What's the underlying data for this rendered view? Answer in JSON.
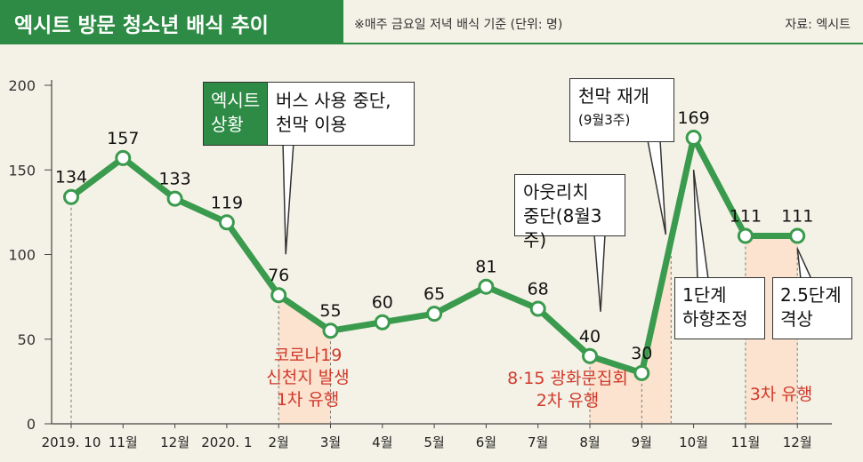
{
  "header": {
    "title": "엑시트 방문 청소년 배식 추이",
    "subtitle": "※매주 금요일 저녁 배식 기준 (단위: 명)",
    "source": "자료: 엑시트"
  },
  "chart_data": {
    "type": "line",
    "categories": [
      "2019. 10",
      "11월",
      "12월",
      "2020. 1",
      "2월",
      "3월",
      "4월",
      "5월",
      "6월",
      "7월",
      "8월",
      "9월",
      "10월",
      "11월",
      "12월"
    ],
    "values": [
      134,
      157,
      133,
      119,
      76,
      55,
      60,
      65,
      81,
      68,
      40,
      30,
      169,
      111,
      111
    ],
    "ylim": [
      0,
      200
    ],
    "yticks": [
      "0",
      "50",
      "100",
      "150",
      "200"
    ],
    "grid": false,
    "line_color": "#3a9a4d",
    "shade_color": "#fbe3cf",
    "event_color": "#d0392b"
  },
  "annotations": {
    "situation_tag": [
      "엑시트",
      "상황"
    ],
    "bus_stop": [
      "버스 사용 중단,",
      "천막 이용"
    ],
    "tent_pause": [
      "아웃리치",
      "중단(8월3주)"
    ],
    "tent_resume": [
      "천막 재개",
      "(9월3주)"
    ],
    "level1": [
      "1단계",
      "하향조정"
    ],
    "level25": [
      "2.5단계",
      "격상"
    ]
  },
  "events": {
    "wave1": [
      "코로나19",
      "신천지 발생",
      "1차 유행"
    ],
    "wave2": [
      "8·15 광화문집회",
      "2차 유행"
    ],
    "wave3": [
      "3차 유행"
    ]
  }
}
